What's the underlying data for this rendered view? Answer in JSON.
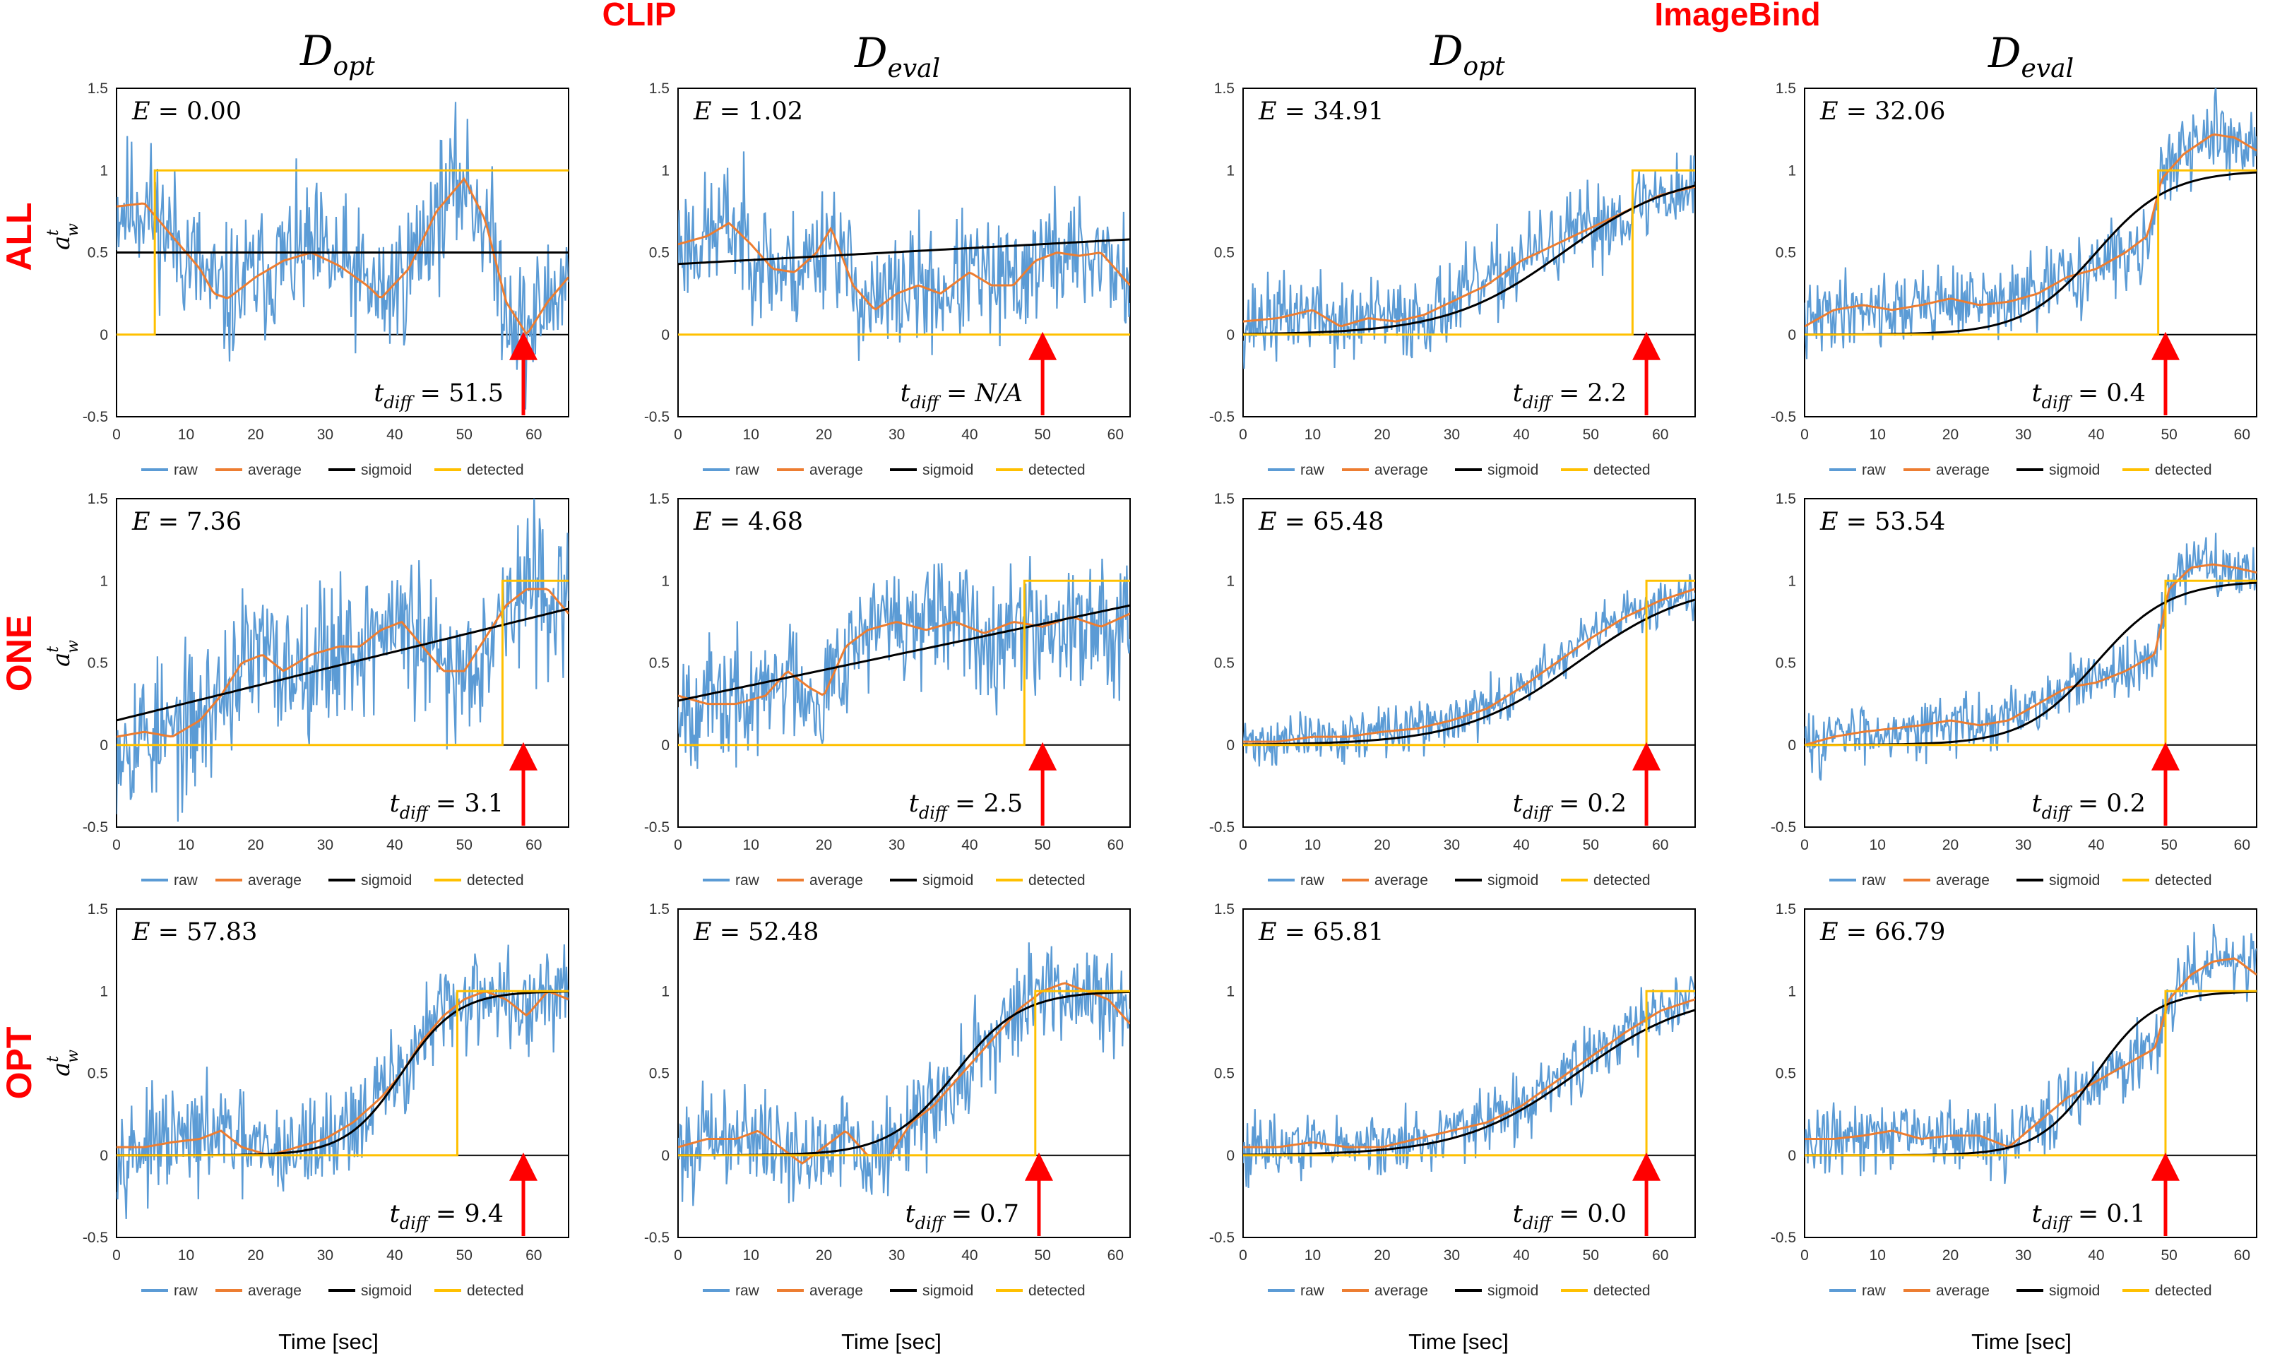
{
  "group_titles": [
    "CLIP",
    "ImageBind"
  ],
  "column_titles": [
    {
      "main": "D",
      "sub": "opt"
    },
    {
      "main": "D",
      "sub": "eval"
    },
    {
      "main": "D",
      "sub": "opt"
    },
    {
      "main": "D",
      "sub": "eval"
    }
  ],
  "row_labels": [
    "ALL",
    "ONE",
    "OPT"
  ],
  "y_axis_label": {
    "main": "a",
    "sub": "w",
    "sup": "t"
  },
  "x_axis_label": "Time [sec]",
  "legend": [
    "raw",
    "average",
    "sigmoid",
    "detected"
  ],
  "colors": {
    "raw": "#5b9bd5",
    "average": "#ed7d31",
    "sigmoid": "#000000",
    "detected": "#ffc000",
    "arrow": "#ff0000",
    "labels": "#ff0000"
  },
  "energy_label": "E",
  "tdiff_label": {
    "main": "t",
    "sub": "diff"
  },
  "chart_data": [
    {
      "type": "line",
      "group": "CLIP",
      "row": "ALL",
      "column": "D_opt",
      "energy": "0.00",
      "tdiff": "51.5",
      "xlim": [
        0,
        65
      ],
      "ylim": [
        -0.5,
        1.5
      ],
      "xticks": [
        0,
        10,
        20,
        30,
        40,
        50,
        60
      ],
      "yticks": [
        "-0.5",
        "0",
        "0.5",
        "1",
        "1.5"
      ],
      "x_end": 65,
      "arrow_x": 58.5,
      "detected_x": 5.5,
      "sigmoid": {
        "k": 0,
        "x0": 0,
        "const": 0.5
      },
      "avg_knots": [
        [
          0,
          0.78
        ],
        [
          4,
          0.8
        ],
        [
          8,
          0.6
        ],
        [
          12,
          0.4
        ],
        [
          14,
          0.25
        ],
        [
          16,
          0.22
        ],
        [
          20,
          0.35
        ],
        [
          24,
          0.45
        ],
        [
          28,
          0.5
        ],
        [
          32,
          0.42
        ],
        [
          36,
          0.3
        ],
        [
          38,
          0.22
        ],
        [
          42,
          0.4
        ],
        [
          46,
          0.75
        ],
        [
          50,
          0.95
        ],
        [
          53,
          0.7
        ],
        [
          56,
          0.2
        ],
        [
          59,
          0.0
        ],
        [
          62,
          0.2
        ],
        [
          65,
          0.35
        ]
      ],
      "noise": 0.28,
      "seed": 11
    },
    {
      "type": "line",
      "group": "CLIP",
      "row": "ALL",
      "column": "D_eval",
      "energy": "1.02",
      "tdiff": "N/A",
      "xlim": [
        0,
        62
      ],
      "ylim": [
        -0.5,
        1.5
      ],
      "xticks": [
        0,
        10,
        20,
        30,
        40,
        50,
        60
      ],
      "yticks": [
        "-0.5",
        "0",
        "0.5",
        "1",
        "1.5"
      ],
      "x_end": 62,
      "arrow_x": 50,
      "detected_x": null,
      "sigmoid": {
        "k": 0,
        "x0": 0,
        "line": [
          0.43,
          0.58
        ]
      },
      "avg_knots": [
        [
          0,
          0.55
        ],
        [
          4,
          0.6
        ],
        [
          7,
          0.68
        ],
        [
          10,
          0.55
        ],
        [
          13,
          0.4
        ],
        [
          16,
          0.38
        ],
        [
          19,
          0.5
        ],
        [
          21,
          0.65
        ],
        [
          24,
          0.3
        ],
        [
          27,
          0.15
        ],
        [
          30,
          0.25
        ],
        [
          33,
          0.3
        ],
        [
          36,
          0.25
        ],
        [
          40,
          0.38
        ],
        [
          43,
          0.3
        ],
        [
          46,
          0.3
        ],
        [
          49,
          0.45
        ],
        [
          52,
          0.5
        ],
        [
          55,
          0.48
        ],
        [
          58,
          0.5
        ],
        [
          62,
          0.3
        ]
      ],
      "noise": 0.25,
      "seed": 23
    },
    {
      "type": "line",
      "group": "ImageBind",
      "row": "ALL",
      "column": "D_opt",
      "energy": "34.91",
      "tdiff": "2.2",
      "xlim": [
        0,
        65
      ],
      "ylim": [
        -0.5,
        1.5
      ],
      "xticks": [
        0,
        10,
        20,
        30,
        40,
        50,
        60
      ],
      "yticks": [
        "-0.5",
        "0",
        "0.5",
        "1",
        "1.5"
      ],
      "x_end": 65,
      "arrow_x": 58,
      "detected_x": 56,
      "sigmoid": {
        "k": 0.12,
        "x0": 46
      },
      "avg_knots": [
        [
          0,
          0.08
        ],
        [
          5,
          0.1
        ],
        [
          10,
          0.15
        ],
        [
          14,
          0.05
        ],
        [
          18,
          0.1
        ],
        [
          22,
          0.08
        ],
        [
          26,
          0.12
        ],
        [
          30,
          0.2
        ],
        [
          35,
          0.3
        ],
        [
          40,
          0.45
        ],
        [
          45,
          0.55
        ],
        [
          50,
          0.65
        ],
        [
          55,
          0.75
        ],
        [
          60,
          0.85
        ],
        [
          65,
          0.9
        ]
      ],
      "noise": 0.17,
      "seed": 37
    },
    {
      "type": "line",
      "group": "ImageBind",
      "row": "ALL",
      "column": "D_eval",
      "energy": "32.06",
      "tdiff": "0.4",
      "xlim": [
        0,
        62
      ],
      "ylim": [
        -0.5,
        1.5
      ],
      "xticks": [
        0,
        10,
        20,
        30,
        40,
        50,
        60
      ],
      "yticks": [
        "-0.5",
        "0",
        "0.5",
        "1",
        "1.5"
      ],
      "x_end": 62,
      "arrow_x": 49.5,
      "detected_x": 48.5,
      "sigmoid": {
        "k": 0.2,
        "x0": 40
      },
      "avg_knots": [
        [
          0,
          0.05
        ],
        [
          4,
          0.15
        ],
        [
          8,
          0.18
        ],
        [
          12,
          0.15
        ],
        [
          16,
          0.18
        ],
        [
          20,
          0.22
        ],
        [
          24,
          0.18
        ],
        [
          28,
          0.2
        ],
        [
          32,
          0.25
        ],
        [
          36,
          0.35
        ],
        [
          40,
          0.4
        ],
        [
          44,
          0.5
        ],
        [
          47,
          0.6
        ],
        [
          49,
          0.95
        ],
        [
          52,
          1.1
        ],
        [
          56,
          1.22
        ],
        [
          59,
          1.2
        ],
        [
          62,
          1.12
        ]
      ],
      "noise": 0.15,
      "seed": 41
    },
    {
      "type": "line",
      "group": "CLIP",
      "row": "ONE",
      "column": "D_opt",
      "energy": "7.36",
      "tdiff": "3.1",
      "xlim": [
        0,
        65
      ],
      "ylim": [
        -0.5,
        1.5
      ],
      "xticks": [
        0,
        10,
        20,
        30,
        40,
        50,
        60
      ],
      "yticks": [
        "-0.5",
        "0",
        "0.5",
        "1",
        "1.5"
      ],
      "x_end": 65,
      "arrow_x": 58.5,
      "detected_x": 55.5,
      "sigmoid": {
        "k": 0,
        "x0": 0,
        "line": [
          0.15,
          0.83
        ]
      },
      "avg_knots": [
        [
          0,
          0.05
        ],
        [
          4,
          0.08
        ],
        [
          8,
          0.05
        ],
        [
          12,
          0.15
        ],
        [
          15,
          0.3
        ],
        [
          18,
          0.5
        ],
        [
          21,
          0.55
        ],
        [
          24,
          0.45
        ],
        [
          28,
          0.55
        ],
        [
          32,
          0.6
        ],
        [
          35,
          0.6
        ],
        [
          38,
          0.7
        ],
        [
          41,
          0.75
        ],
        [
          44,
          0.6
        ],
        [
          47,
          0.45
        ],
        [
          50,
          0.45
        ],
        [
          53,
          0.65
        ],
        [
          56,
          0.85
        ],
        [
          59,
          0.95
        ],
        [
          62,
          0.95
        ],
        [
          65,
          0.8
        ]
      ],
      "noise": 0.3,
      "seed": 53
    },
    {
      "type": "line",
      "group": "CLIP",
      "row": "ONE",
      "column": "D_eval",
      "energy": "4.68",
      "tdiff": "2.5",
      "xlim": [
        0,
        62
      ],
      "ylim": [
        -0.5,
        1.5
      ],
      "xticks": [
        0,
        10,
        20,
        30,
        40,
        50,
        60
      ],
      "yticks": [
        "-0.5",
        "0",
        "0.5",
        "1",
        "1.5"
      ],
      "x_end": 62,
      "arrow_x": 50,
      "detected_x": 47.5,
      "sigmoid": {
        "k": 0,
        "x0": 0,
        "line": [
          0.27,
          0.85
        ]
      },
      "avg_knots": [
        [
          0,
          0.3
        ],
        [
          4,
          0.25
        ],
        [
          8,
          0.25
        ],
        [
          12,
          0.3
        ],
        [
          15,
          0.45
        ],
        [
          18,
          0.35
        ],
        [
          20,
          0.3
        ],
        [
          23,
          0.6
        ],
        [
          26,
          0.7
        ],
        [
          30,
          0.75
        ],
        [
          34,
          0.7
        ],
        [
          38,
          0.75
        ],
        [
          42,
          0.68
        ],
        [
          46,
          0.75
        ],
        [
          50,
          0.72
        ],
        [
          54,
          0.78
        ],
        [
          58,
          0.72
        ],
        [
          62,
          0.8
        ]
      ],
      "noise": 0.25,
      "seed": 67
    },
    {
      "type": "line",
      "group": "ImageBind",
      "row": "ONE",
      "column": "D_opt",
      "energy": "65.48",
      "tdiff": "0.2",
      "xlim": [
        0,
        65
      ],
      "ylim": [
        -0.5,
        1.5
      ],
      "xticks": [
        0,
        10,
        20,
        30,
        40,
        50,
        60
      ],
      "yticks": [
        "-0.5",
        "0",
        "0.5",
        "1",
        "1.5"
      ],
      "x_end": 65,
      "arrow_x": 58,
      "detected_x": 58,
      "sigmoid": {
        "k": 0.12,
        "x0": 48
      },
      "avg_knots": [
        [
          0,
          0.02
        ],
        [
          5,
          0.02
        ],
        [
          10,
          0.05
        ],
        [
          15,
          0.05
        ],
        [
          20,
          0.08
        ],
        [
          25,
          0.1
        ],
        [
          30,
          0.15
        ],
        [
          35,
          0.22
        ],
        [
          40,
          0.35
        ],
        [
          45,
          0.5
        ],
        [
          50,
          0.65
        ],
        [
          55,
          0.78
        ],
        [
          60,
          0.88
        ],
        [
          65,
          0.95
        ]
      ],
      "noise": 0.1,
      "seed": 71
    },
    {
      "type": "line",
      "group": "ImageBind",
      "row": "ONE",
      "column": "D_eval",
      "energy": "53.54",
      "tdiff": "0.2",
      "xlim": [
        0,
        62
      ],
      "ylim": [
        -0.5,
        1.5
      ],
      "xticks": [
        0,
        10,
        20,
        30,
        40,
        50,
        60
      ],
      "yticks": [
        "-0.5",
        "0",
        "0.5",
        "1",
        "1.5"
      ],
      "x_end": 62,
      "arrow_x": 49.5,
      "detected_x": 49.5,
      "sigmoid": {
        "k": 0.2,
        "x0": 40
      },
      "avg_knots": [
        [
          0,
          0.0
        ],
        [
          4,
          0.05
        ],
        [
          8,
          0.08
        ],
        [
          12,
          0.1
        ],
        [
          16,
          0.12
        ],
        [
          20,
          0.15
        ],
        [
          24,
          0.12
        ],
        [
          28,
          0.15
        ],
        [
          32,
          0.25
        ],
        [
          36,
          0.35
        ],
        [
          40,
          0.38
        ],
        [
          44,
          0.45
        ],
        [
          48,
          0.55
        ],
        [
          50,
          0.95
        ],
        [
          53,
          1.08
        ],
        [
          56,
          1.1
        ],
        [
          59,
          1.08
        ],
        [
          62,
          1.05
        ]
      ],
      "noise": 0.12,
      "seed": 83
    },
    {
      "type": "line",
      "group": "CLIP",
      "row": "OPT",
      "column": "D_opt",
      "energy": "57.83",
      "tdiff": "9.4",
      "xlim": [
        0,
        65
      ],
      "ylim": [
        -0.5,
        1.5
      ],
      "xticks": [
        0,
        10,
        20,
        30,
        40,
        50,
        60
      ],
      "yticks": [
        "-0.5",
        "0",
        "0.5",
        "1",
        "1.5"
      ],
      "x_end": 65,
      "arrow_x": 58.5,
      "detected_x": 49,
      "sigmoid": {
        "k": 0.25,
        "x0": 41
      },
      "avg_knots": [
        [
          0,
          0.05
        ],
        [
          4,
          0.05
        ],
        [
          8,
          0.08
        ],
        [
          12,
          0.1
        ],
        [
          15,
          0.15
        ],
        [
          18,
          0.05
        ],
        [
          22,
          0.0
        ],
        [
          26,
          0.05
        ],
        [
          30,
          0.1
        ],
        [
          34,
          0.2
        ],
        [
          38,
          0.35
        ],
        [
          41,
          0.5
        ],
        [
          44,
          0.7
        ],
        [
          47,
          0.85
        ],
        [
          50,
          0.95
        ],
        [
          53,
          1.0
        ],
        [
          56,
          0.95
        ],
        [
          59,
          0.85
        ],
        [
          62,
          1.0
        ],
        [
          65,
          0.95
        ]
      ],
      "noise": 0.2,
      "seed": 97
    },
    {
      "type": "line",
      "group": "CLIP",
      "row": "OPT",
      "column": "D_eval",
      "energy": "52.48",
      "tdiff": "0.7",
      "xlim": [
        0,
        62
      ],
      "ylim": [
        -0.5,
        1.5
      ],
      "xticks": [
        0,
        10,
        20,
        30,
        40,
        50,
        60
      ],
      "yticks": [
        "-0.5",
        "0",
        "0.5",
        "1",
        "1.5"
      ],
      "x_end": 62,
      "arrow_x": 49.5,
      "detected_x": 49,
      "sigmoid": {
        "k": 0.22,
        "x0": 38
      },
      "avg_knots": [
        [
          0,
          0.05
        ],
        [
          4,
          0.1
        ],
        [
          8,
          0.1
        ],
        [
          11,
          0.15
        ],
        [
          14,
          0.05
        ],
        [
          17,
          -0.05
        ],
        [
          20,
          0.05
        ],
        [
          23,
          0.15
        ],
        [
          26,
          0.0
        ],
        [
          29,
          0.0
        ],
        [
          32,
          0.2
        ],
        [
          35,
          0.3
        ],
        [
          38,
          0.45
        ],
        [
          41,
          0.6
        ],
        [
          44,
          0.75
        ],
        [
          47,
          0.9
        ],
        [
          50,
          1.0
        ],
        [
          53,
          1.05
        ],
        [
          56,
          1.0
        ],
        [
          59,
          0.95
        ],
        [
          62,
          0.8
        ]
      ],
      "noise": 0.2,
      "seed": 101
    },
    {
      "type": "line",
      "group": "ImageBind",
      "row": "OPT",
      "column": "D_opt",
      "energy": "65.81",
      "tdiff": "0.0",
      "xlim": [
        0,
        65
      ],
      "ylim": [
        -0.5,
        1.5
      ],
      "xticks": [
        0,
        10,
        20,
        30,
        40,
        50,
        60
      ],
      "yticks": [
        "-0.5",
        "0",
        "0.5",
        "1",
        "1.5"
      ],
      "x_end": 65,
      "arrow_x": 58,
      "detected_x": 58,
      "sigmoid": {
        "k": 0.12,
        "x0": 48
      },
      "avg_knots": [
        [
          0,
          0.05
        ],
        [
          5,
          0.05
        ],
        [
          10,
          0.08
        ],
        [
          15,
          0.05
        ],
        [
          20,
          0.05
        ],
        [
          25,
          0.1
        ],
        [
          30,
          0.15
        ],
        [
          35,
          0.2
        ],
        [
          40,
          0.3
        ],
        [
          45,
          0.45
        ],
        [
          50,
          0.6
        ],
        [
          55,
          0.75
        ],
        [
          60,
          0.88
        ],
        [
          65,
          0.95
        ]
      ],
      "noise": 0.13,
      "seed": 113
    },
    {
      "type": "line",
      "group": "ImageBind",
      "row": "OPT",
      "column": "D_eval",
      "energy": "66.79",
      "tdiff": "0.1",
      "xlim": [
        0,
        62
      ],
      "ylim": [
        -0.5,
        1.5
      ],
      "xticks": [
        0,
        10,
        20,
        30,
        40,
        50,
        60
      ],
      "yticks": [
        "-0.5",
        "0",
        "0.5",
        "1",
        "1.5"
      ],
      "x_end": 62,
      "arrow_x": 49.5,
      "detected_x": 49.5,
      "sigmoid": {
        "k": 0.25,
        "x0": 40
      },
      "avg_knots": [
        [
          0,
          0.1
        ],
        [
          4,
          0.1
        ],
        [
          8,
          0.12
        ],
        [
          12,
          0.15
        ],
        [
          16,
          0.1
        ],
        [
          20,
          0.12
        ],
        [
          24,
          0.12
        ],
        [
          28,
          0.05
        ],
        [
          32,
          0.2
        ],
        [
          36,
          0.35
        ],
        [
          40,
          0.45
        ],
        [
          44,
          0.55
        ],
        [
          48,
          0.65
        ],
        [
          50,
          0.95
        ],
        [
          53,
          1.1
        ],
        [
          56,
          1.18
        ],
        [
          59,
          1.2
        ],
        [
          62,
          1.1
        ]
      ],
      "noise": 0.14,
      "seed": 131
    }
  ]
}
